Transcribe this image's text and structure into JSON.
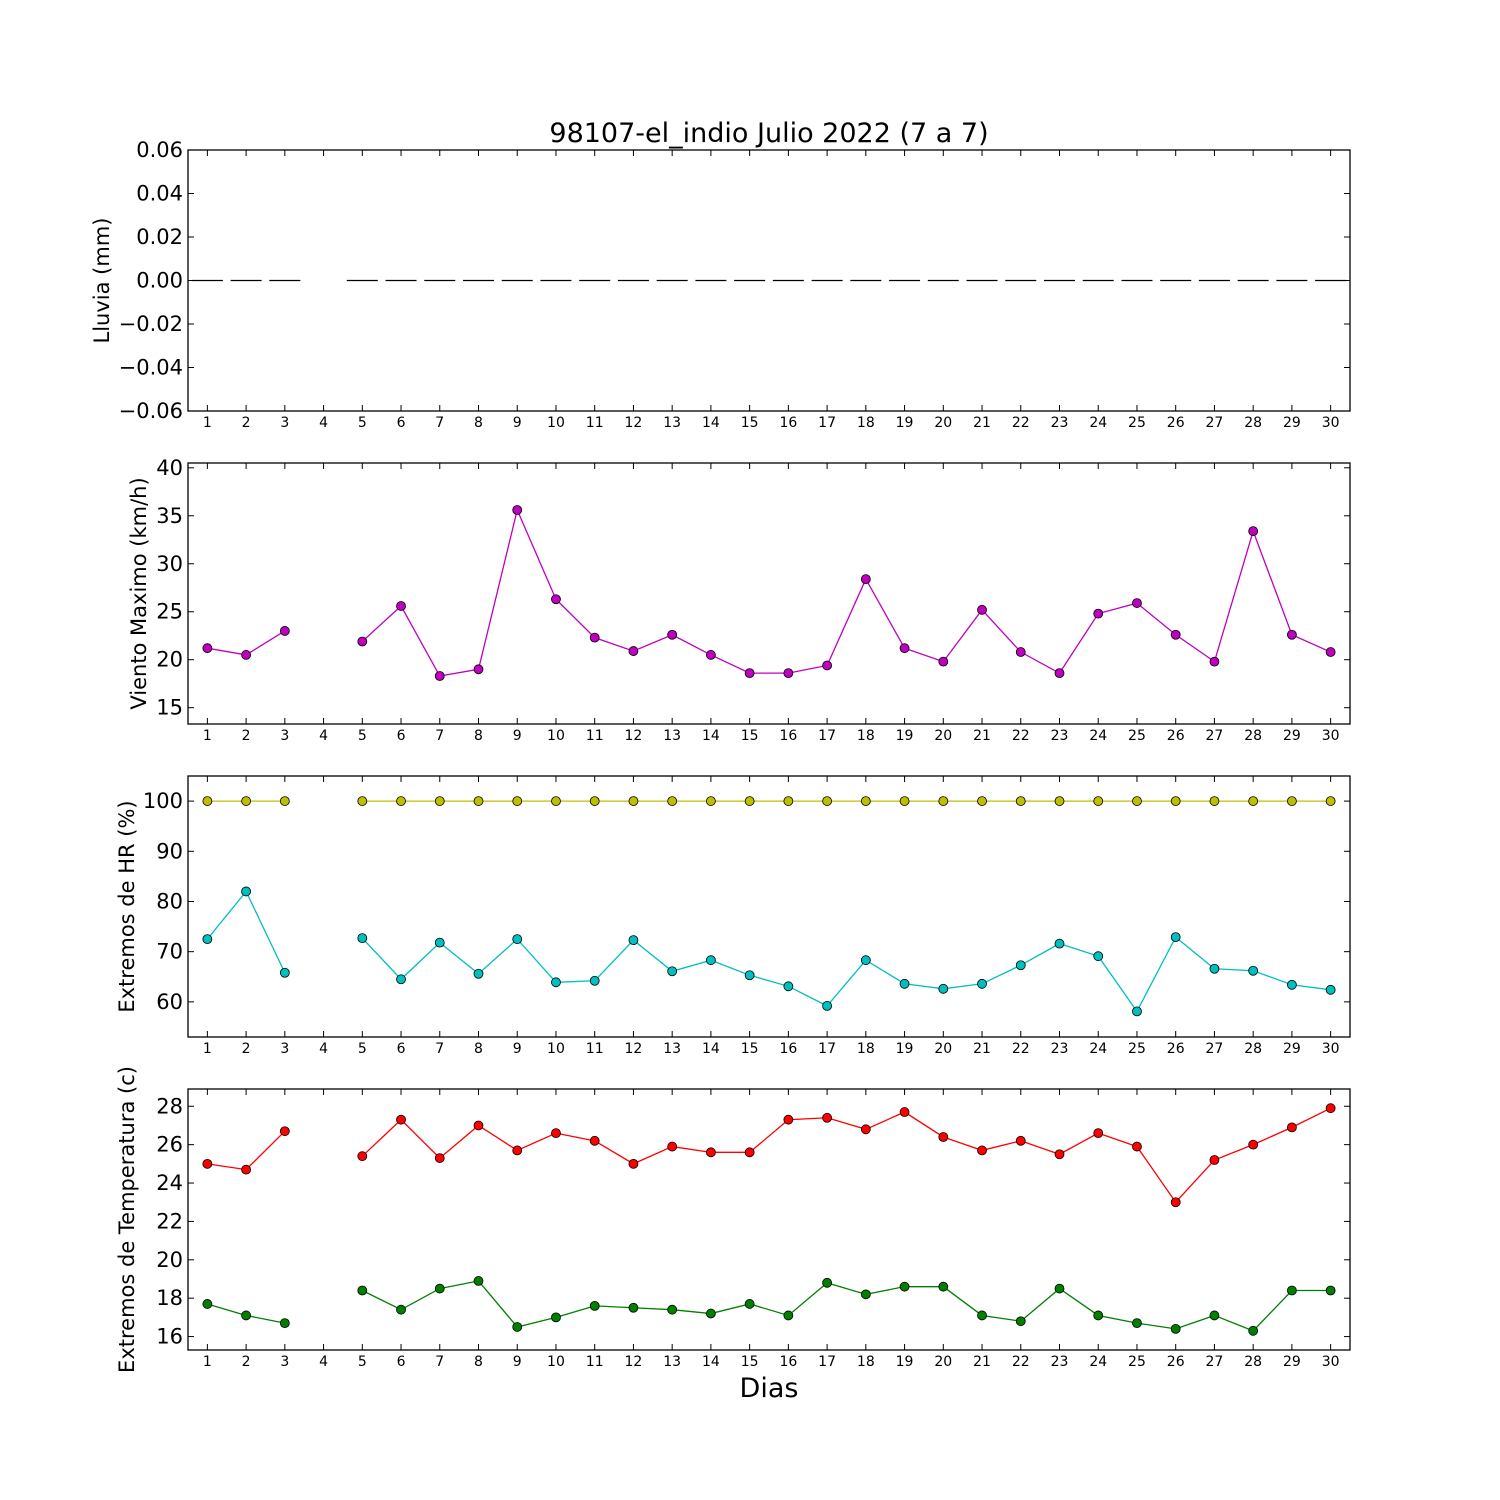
{
  "title": "98107-el_indio Julio 2022  (7 a 7)",
  "chart_data": {
    "type": "line",
    "title": "98107-el_indio Julio 2022  (7 a 7)",
    "xlabel": "Dias",
    "x": [
      1,
      2,
      3,
      4,
      5,
      6,
      7,
      8,
      9,
      10,
      11,
      12,
      13,
      14,
      15,
      16,
      17,
      18,
      19,
      20,
      21,
      22,
      23,
      24,
      25,
      26,
      27,
      28,
      29,
      30
    ],
    "panels": [
      {
        "ylabel": "Lluvia (mm)",
        "ylim": [
          -0.06,
          0.06
        ],
        "yticks": [
          0.06,
          0.04,
          0.02,
          0.0,
          -0.02,
          -0.04,
          -0.06
        ],
        "ytick_labels": [
          "0.06",
          "0.04",
          "0.02",
          "0.00",
          "−0.02",
          "−0.04",
          "−0.06"
        ],
        "style": "bars",
        "series": [
          {
            "color": "#000000",
            "values": [
              0,
              0,
              0,
              null,
              0,
              0,
              0,
              0,
              0,
              0,
              0,
              0,
              0,
              0,
              0,
              0,
              0,
              0,
              0,
              0,
              0,
              0,
              0,
              0,
              0,
              0,
              0,
              0,
              0,
              0
            ]
          }
        ]
      },
      {
        "ylabel": "Viento Maximo (km/h)",
        "ylim": [
          13.3,
          40.5
        ],
        "yticks": [
          15,
          20,
          25,
          30,
          35,
          40
        ],
        "ytick_labels": [
          "15",
          "20",
          "25",
          "30",
          "35",
          "40"
        ],
        "style": "line",
        "series": [
          {
            "color": "#bf00bf",
            "values": [
              21.2,
              20.5,
              23.0,
              null,
              21.9,
              25.6,
              18.3,
              19.0,
              35.6,
              26.3,
              22.3,
              20.9,
              22.6,
              20.5,
              18.6,
              18.6,
              19.4,
              28.4,
              21.2,
              19.8,
              25.2,
              20.8,
              18.6,
              24.8,
              25.9,
              22.6,
              19.8,
              33.4,
              22.6,
              20.8
            ]
          }
        ]
      },
      {
        "ylabel": "Extremos de HR (%)",
        "ylim": [
          53,
          105
        ],
        "yticks": [
          60,
          70,
          80,
          90,
          100
        ],
        "ytick_labels": [
          "60",
          "70",
          "80",
          "90",
          "100"
        ],
        "style": "line",
        "series": [
          {
            "color": "#bfbf00",
            "values": [
              100,
              100,
              100,
              null,
              100,
              100,
              100,
              100,
              100,
              100,
              100,
              100,
              100,
              100,
              100,
              100,
              100,
              100,
              100,
              100,
              100,
              100,
              100,
              100,
              100,
              100,
              100,
              100,
              100,
              100
            ]
          },
          {
            "color": "#00bfbf",
            "values": [
              72.5,
              82,
              65.8,
              null,
              72.7,
              64.5,
              71.8,
              65.6,
              72.5,
              63.9,
              64.2,
              72.3,
              66.1,
              68.3,
              65.3,
              63.1,
              59.2,
              68.3,
              63.6,
              62.6,
              63.6,
              67.3,
              71.6,
              69.1,
              58.1,
              72.9,
              66.6,
              66.2,
              63.4,
              62.4
            ]
          }
        ]
      },
      {
        "ylabel": "Extremos de Temperatura (c)",
        "ylim": [
          15.3,
          28.9
        ],
        "yticks": [
          16,
          18,
          20,
          22,
          24,
          26,
          28
        ],
        "ytick_labels": [
          "16",
          "18",
          "20",
          "22",
          "24",
          "26",
          "28"
        ],
        "style": "line",
        "series": [
          {
            "color": "#ff0000",
            "values": [
              25.0,
              24.7,
              26.7,
              null,
              25.4,
              27.3,
              25.3,
              27.0,
              25.7,
              26.6,
              26.2,
              25.0,
              25.9,
              25.6,
              25.6,
              27.3,
              27.4,
              26.8,
              27.7,
              26.4,
              25.7,
              26.2,
              25.5,
              26.6,
              25.9,
              23.0,
              25.2,
              26.0,
              26.9,
              27.9
            ]
          },
          {
            "color": "#007f00",
            "values": [
              17.7,
              17.1,
              16.7,
              null,
              18.4,
              17.4,
              18.5,
              18.9,
              16.5,
              17.0,
              17.6,
              17.5,
              17.4,
              17.2,
              17.7,
              17.1,
              18.8,
              18.2,
              18.6,
              18.6,
              17.1,
              16.8,
              18.5,
              17.1,
              16.7,
              16.4,
              17.1,
              16.3,
              18.4,
              18.4
            ]
          }
        ]
      }
    ]
  }
}
